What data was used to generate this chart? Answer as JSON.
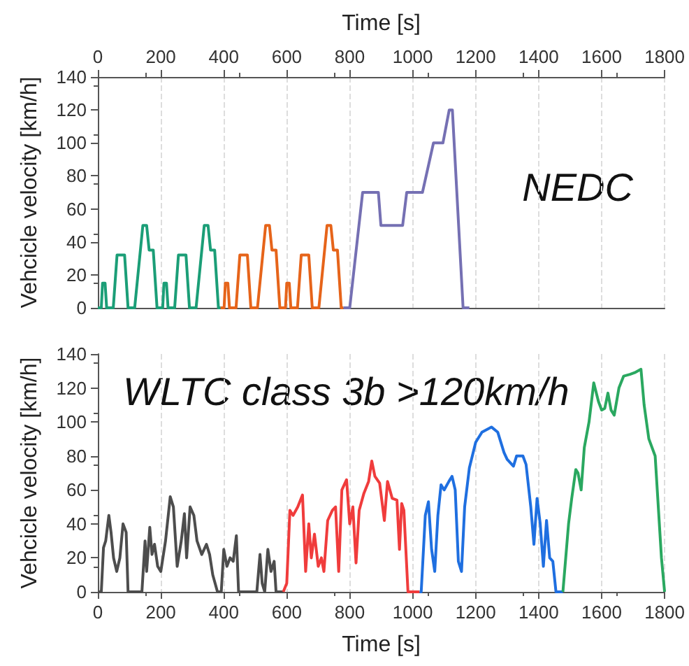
{
  "chart_data": [
    {
      "type": "line",
      "ylabel": "Vehcicle velocity [km/h]",
      "xlim": [
        0,
        1800
      ],
      "xticks": [
        0,
        200,
        400,
        600,
        800,
        1000,
        1200,
        1400,
        1600,
        1800
      ],
      "tick_labels": "y",
      "x2label": "Time [s]",
      "x2lim": [
        0,
        1800
      ],
      "x2ticks": [
        0,
        200,
        400,
        600,
        800,
        1000,
        1200,
        1400,
        1600,
        1800
      ],
      "ylim": [
        0,
        140
      ],
      "yticks": [
        0,
        20,
        40,
        60,
        80,
        100,
        120,
        140
      ],
      "grid": "x",
      "marker": "none",
      "annotations": [
        "NEDC"
      ],
      "series": [
        {
          "color": "#1b9e77",
          "x": [
            0,
            11,
            15,
            23,
            28,
            49,
            61,
            85,
            96,
            117,
            143,
            155,
            163,
            176,
            188,
            195,
            206,
            210,
            218,
            223,
            244,
            256,
            280,
            291,
            312,
            338,
            350,
            358,
            371,
            383,
            390
          ],
          "values": [
            0,
            0,
            15,
            15,
            0,
            0,
            32,
            32,
            0,
            0,
            50,
            50,
            35,
            35,
            0,
            0,
            0,
            15,
            15,
            0,
            0,
            32,
            32,
            0,
            0,
            50,
            50,
            35,
            35,
            0,
            0
          ]
        },
        {
          "color": "#e6641a",
          "x": [
            390,
            401,
            405,
            413,
            418,
            439,
            451,
            475,
            486,
            507,
            533,
            545,
            553,
            566,
            578,
            585,
            596,
            600,
            608,
            613,
            634,
            646,
            670,
            681,
            702,
            728,
            740,
            748,
            761,
            773,
            780
          ],
          "values": [
            0,
            0,
            15,
            15,
            0,
            0,
            32,
            32,
            0,
            0,
            50,
            50,
            35,
            35,
            0,
            0,
            0,
            15,
            15,
            0,
            0,
            32,
            32,
            0,
            0,
            50,
            50,
            35,
            35,
            0,
            0
          ]
        },
        {
          "color": "#7570b3",
          "x": [
            780,
            800,
            841,
            891,
            899,
            968,
            981,
            1031,
            1066,
            1096,
            1116,
            1126,
            1160,
            1180
          ],
          "values": [
            0,
            0,
            70,
            70,
            50,
            50,
            70,
            70,
            100,
            100,
            120,
            120,
            0,
            0
          ]
        }
      ]
    },
    {
      "type": "line",
      "xlabel": "Time [s]",
      "ylabel": "Vehcicle velocity [km/h]",
      "xlim": [
        0,
        1800
      ],
      "xticks": [
        0,
        200,
        400,
        600,
        800,
        1000,
        1200,
        1400,
        1600,
        1800
      ],
      "ylim": [
        0,
        140
      ],
      "yticks": [
        0,
        20,
        40,
        60,
        80,
        100,
        120,
        140
      ],
      "grid": "x",
      "marker": "none",
      "annotations": [
        "WLTC class 3b >120km/h"
      ],
      "series": [
        {
          "color": "#4d4d4d",
          "x": [
            0,
            11,
            18,
            25,
            35,
            42,
            50,
            60,
            70,
            80,
            90,
            96,
            140,
            150,
            155,
            165,
            172,
            180,
            190,
            200,
            215,
            230,
            240,
            252,
            265,
            275,
            282,
            293,
            305,
            315,
            330,
            345,
            355,
            365,
            380,
            392,
            400,
            410,
            420,
            430,
            440,
            447,
            505,
            515,
            522,
            530,
            540,
            550,
            560,
            566,
            589
          ],
          "values": [
            0,
            0,
            26,
            30,
            45,
            35,
            20,
            12,
            20,
            40,
            35,
            0,
            0,
            30,
            12,
            38,
            22,
            28,
            15,
            12,
            30,
            56,
            50,
            15,
            30,
            46,
            20,
            50,
            45,
            30,
            22,
            28,
            22,
            10,
            0,
            0,
            25,
            15,
            20,
            18,
            33,
            0,
            0,
            22,
            5,
            0,
            25,
            12,
            18,
            0,
            0
          ]
        },
        {
          "color": "#f03c3c",
          "x": [
            589,
            600,
            610,
            620,
            635,
            650,
            660,
            670,
            678,
            688,
            700,
            710,
            718,
            730,
            745,
            755,
            765,
            775,
            790,
            800,
            810,
            820,
            830,
            845,
            860,
            870,
            880,
            895,
            910,
            920,
            935,
            950,
            958,
            965,
            972,
            985,
            1022
          ],
          "values": [
            0,
            5,
            48,
            45,
            50,
            57,
            12,
            40,
            20,
            34,
            15,
            20,
            12,
            42,
            48,
            50,
            12,
            60,
            66,
            40,
            50,
            17,
            48,
            58,
            65,
            77,
            68,
            64,
            42,
            65,
            55,
            54,
            25,
            52,
            48,
            0,
            0
          ]
        },
        {
          "color": "#1f6fe0",
          "x": [
            1022,
            1027,
            1040,
            1050,
            1060,
            1070,
            1080,
            1090,
            1100,
            1115,
            1125,
            1135,
            1145,
            1155,
            1165,
            1180,
            1200,
            1220,
            1250,
            1270,
            1290,
            1300,
            1320,
            1330,
            1350,
            1360,
            1375,
            1385,
            1395,
            1405,
            1415,
            1425,
            1435,
            1445,
            1455,
            1477
          ],
          "values": [
            0,
            0,
            45,
            53,
            25,
            12,
            45,
            63,
            60,
            65,
            68,
            60,
            18,
            12,
            50,
            73,
            88,
            94,
            97,
            94,
            82,
            78,
            74,
            80,
            80,
            75,
            50,
            28,
            55,
            40,
            15,
            42,
            20,
            18,
            0,
            0
          ]
        },
        {
          "color": "#2aa860",
          "x": [
            1477,
            1480,
            1495,
            1505,
            1518,
            1525,
            1535,
            1545,
            1560,
            1575,
            1590,
            1600,
            1610,
            1620,
            1630,
            1640,
            1655,
            1670,
            1690,
            1705,
            1715,
            1725,
            1735,
            1750,
            1770,
            1790,
            1800
          ],
          "values": [
            0,
            0,
            40,
            55,
            72,
            70,
            60,
            85,
            100,
            123,
            112,
            107,
            108,
            117,
            107,
            104,
            120,
            127,
            128,
            129,
            130,
            131,
            110,
            90,
            80,
            20,
            0
          ]
        }
      ]
    }
  ]
}
